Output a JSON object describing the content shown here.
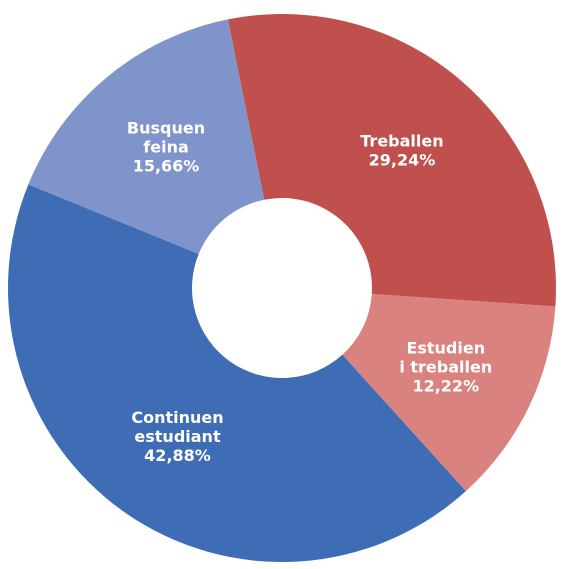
{
  "chart_data": {
    "type": "donut",
    "categories": [
      "Treballen",
      "Estudien\ni treballen",
      "Continuen\nestudiant",
      "Busquen\nfeina"
    ],
    "values": [
      29.24,
      12.22,
      42.88,
      15.66
    ],
    "value_labels": [
      "29,24%",
      "12,22%",
      "42,88%",
      "15,66%"
    ],
    "colors": [
      "#c0504d",
      "#d9827f",
      "#3e6db5",
      "#8094cc"
    ]
  }
}
